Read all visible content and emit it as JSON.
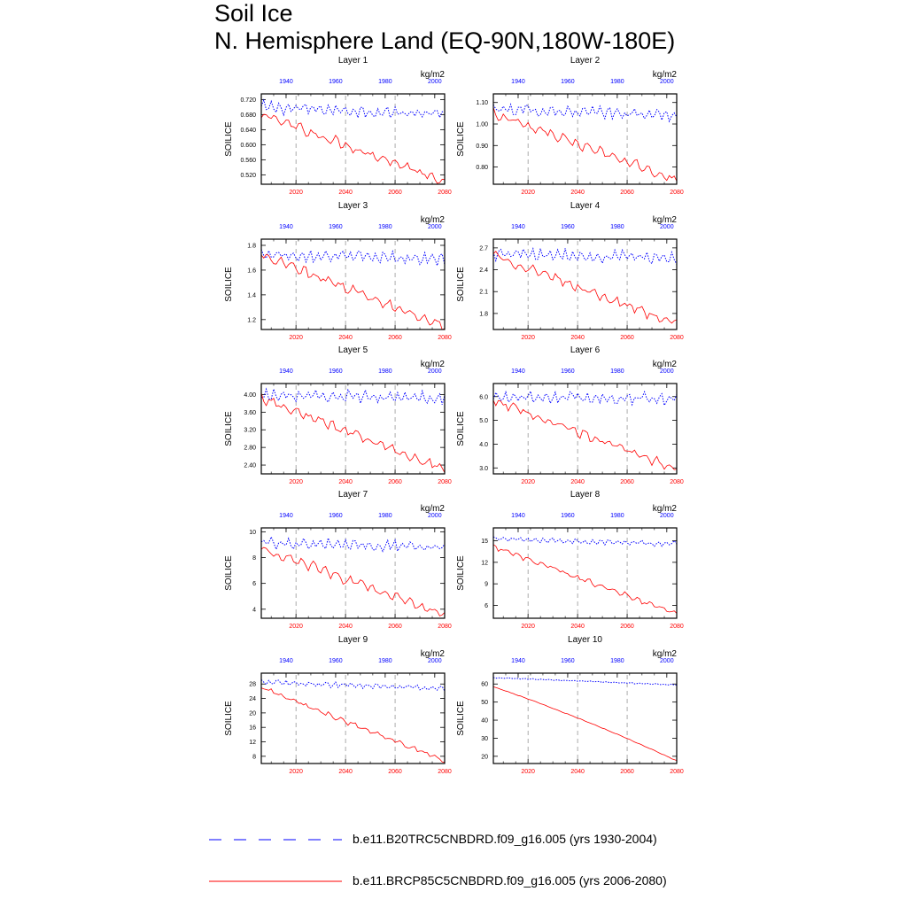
{
  "title_line1": "Soil Ice",
  "title_line2": "N. Hemisphere Land (EQ-90N,180W-180E)",
  "colors": {
    "hist": "#0000ff",
    "future": "#ff0000",
    "frame": "#000000",
    "refline": "#888888"
  },
  "legend": [
    {
      "label": "b.e11.B20TRC5CNBDRD.f09_g16.005 (yrs 1930-2004)",
      "color": "#0000ff",
      "style": "dashed"
    },
    {
      "label": "b.e11.BRCP85C5CNBDRD.f09_g16.005 (yrs 2006-2080)",
      "color": "#ff0000",
      "style": "solid"
    }
  ],
  "chart_data": [
    {
      "type": "line",
      "title": "Layer 1",
      "ylabel": "SOILICE",
      "units": "kg/m2",
      "ylim": [
        0.495,
        0.735
      ],
      "yticks": [
        0.52,
        0.56,
        0.6,
        0.64,
        0.68,
        0.72
      ],
      "ytick_labels": [
        "0.520",
        "0.560",
        "0.600",
        "0.640",
        "0.680",
        "0.720"
      ],
      "x_bottom_ticks": [
        2020,
        2040,
        2060,
        2080
      ],
      "x_top_ticks": [
        1940,
        1960,
        1980,
        2000
      ],
      "x_range_bottom": [
        2006,
        2080
      ],
      "x_range_top": [
        1930,
        2004
      ],
      "series": [
        {
          "name": "b.e11.B20TRC5CNBDRD.f09_g16.005 (yrs 1930-2004)",
          "start": 0.7,
          "end": 0.68,
          "trend": "flat"
        },
        {
          "name": "b.e11.BRCP85C5CNBDRD.f09_g16.005 (yrs 2006-2080)",
          "start": 0.68,
          "end": 0.505,
          "trend": "decline"
        }
      ]
    },
    {
      "type": "line",
      "title": "Layer 2",
      "ylabel": "SOILICE",
      "units": "kg/m2",
      "ylim": [
        0.72,
        1.14
      ],
      "yticks": [
        0.8,
        0.9,
        1.0,
        1.1
      ],
      "ytick_labels": [
        "0.80",
        "0.90",
        "1.00",
        "1.10"
      ],
      "x_bottom_ticks": [
        2020,
        2040,
        2060,
        2080
      ],
      "x_top_ticks": [
        1940,
        1960,
        1980,
        2000
      ],
      "x_range_bottom": [
        2006,
        2080
      ],
      "x_range_top": [
        1930,
        2004
      ],
      "series": [
        {
          "name": "b.e11.B20TRC5CNBDRD.f09_g16.005 (yrs 1930-2004)",
          "start": 1.07,
          "end": 1.04,
          "trend": "flat"
        },
        {
          "name": "b.e11.BRCP85C5CNBDRD.f09_g16.005 (yrs 2006-2080)",
          "start": 1.05,
          "end": 0.74,
          "trend": "decline"
        }
      ]
    },
    {
      "type": "line",
      "title": "Layer 3",
      "ylabel": "SOILICE",
      "units": "kg/m2",
      "ylim": [
        1.12,
        1.85
      ],
      "yticks": [
        1.2,
        1.4,
        1.6,
        1.8
      ],
      "ytick_labels": [
        "1.2",
        "1.4",
        "1.6",
        "1.8"
      ],
      "x_bottom_ticks": [
        2020,
        2040,
        2060,
        2080
      ],
      "x_top_ticks": [
        1940,
        1960,
        1980,
        2000
      ],
      "x_range_bottom": [
        2006,
        2080
      ],
      "x_range_top": [
        1930,
        2004
      ],
      "series": [
        {
          "name": "b.e11.B20TRC5CNBDRD.f09_g16.005 (yrs 1930-2004)",
          "start": 1.73,
          "end": 1.69,
          "trend": "flat"
        },
        {
          "name": "b.e11.BRCP85C5CNBDRD.f09_g16.005 (yrs 2006-2080)",
          "start": 1.72,
          "end": 1.15,
          "trend": "decline"
        }
      ]
    },
    {
      "type": "line",
      "title": "Layer 4",
      "ylabel": "SOILICE",
      "units": "kg/m2",
      "ylim": [
        1.58,
        2.82
      ],
      "yticks": [
        1.8,
        2.1,
        2.4,
        2.7
      ],
      "ytick_labels": [
        "1.8",
        "2.1",
        "2.4",
        "2.7"
      ],
      "x_bottom_ticks": [
        2020,
        2040,
        2060,
        2080
      ],
      "x_top_ticks": [
        1940,
        1960,
        1980,
        2000
      ],
      "x_range_bottom": [
        2006,
        2080
      ],
      "x_range_top": [
        1930,
        2004
      ],
      "series": [
        {
          "name": "b.e11.B20TRC5CNBDRD.f09_g16.005 (yrs 1930-2004)",
          "start": 2.62,
          "end": 2.56,
          "trend": "flat"
        },
        {
          "name": "b.e11.BRCP85C5CNBDRD.f09_g16.005 (yrs 2006-2080)",
          "start": 2.6,
          "end": 1.65,
          "trend": "decline"
        }
      ]
    },
    {
      "type": "line",
      "title": "Layer 5",
      "ylabel": "SOILICE",
      "units": "kg/m2",
      "ylim": [
        2.2,
        4.25
      ],
      "yticks": [
        2.4,
        2.8,
        3.2,
        3.6,
        4.0
      ],
      "ytick_labels": [
        "2.40",
        "2.80",
        "3.20",
        "3.60",
        "4.00"
      ],
      "x_bottom_ticks": [
        2020,
        2040,
        2060,
        2080
      ],
      "x_top_ticks": [
        1940,
        1960,
        1980,
        2000
      ],
      "x_range_bottom": [
        2006,
        2080
      ],
      "x_range_top": [
        1930,
        2004
      ],
      "series": [
        {
          "name": "b.e11.B20TRC5CNBDRD.f09_g16.005 (yrs 1930-2004)",
          "start": 3.98,
          "end": 3.92,
          "trend": "flat"
        },
        {
          "name": "b.e11.BRCP85C5CNBDRD.f09_g16.005 (yrs 2006-2080)",
          "start": 3.92,
          "end": 2.3,
          "trend": "decline"
        }
      ]
    },
    {
      "type": "line",
      "title": "Layer 6",
      "ylabel": "SOILICE",
      "units": "kg/m2",
      "ylim": [
        2.75,
        6.55
      ],
      "yticks": [
        3.0,
        4.0,
        5.0,
        6.0
      ],
      "ytick_labels": [
        "3.0",
        "4.0",
        "5.0",
        "6.0"
      ],
      "x_bottom_ticks": [
        2020,
        2040,
        2060,
        2080
      ],
      "x_top_ticks": [
        1940,
        1960,
        1980,
        2000
      ],
      "x_range_bottom": [
        2006,
        2080
      ],
      "x_range_top": [
        1930,
        2004
      ],
      "series": [
        {
          "name": "b.e11.B20TRC5CNBDRD.f09_g16.005 (yrs 1930-2004)",
          "start": 6.0,
          "end": 5.9,
          "trend": "flat"
        },
        {
          "name": "b.e11.BRCP85C5CNBDRD.f09_g16.005 (yrs 2006-2080)",
          "start": 5.85,
          "end": 2.95,
          "trend": "decline"
        }
      ]
    },
    {
      "type": "line",
      "title": "Layer 7",
      "ylabel": "SOILICE",
      "units": "kg/m2",
      "ylim": [
        3.3,
        10.3
      ],
      "yticks": [
        4,
        6,
        8,
        10
      ],
      "ytick_labels": [
        "4",
        "6",
        "8",
        "10"
      ],
      "x_bottom_ticks": [
        2020,
        2040,
        2060,
        2080
      ],
      "x_top_ticks": [
        1940,
        1960,
        1980,
        2000
      ],
      "x_range_bottom": [
        2006,
        2080
      ],
      "x_range_top": [
        1930,
        2004
      ],
      "series": [
        {
          "name": "b.e11.B20TRC5CNBDRD.f09_g16.005 (yrs 1930-2004)",
          "start": 9.2,
          "end": 8.8,
          "trend": "flat"
        },
        {
          "name": "b.e11.BRCP85C5CNBDRD.f09_g16.005 (yrs 2006-2080)",
          "start": 8.7,
          "end": 3.6,
          "trend": "decline"
        }
      ]
    },
    {
      "type": "line",
      "title": "Layer 8",
      "ylabel": "SOILICE",
      "units": "kg/m2",
      "ylim": [
        4.2,
        16.8
      ],
      "yticks": [
        6,
        9,
        12,
        15
      ],
      "ytick_labels": [
        "6",
        "9",
        "12",
        "15"
      ],
      "x_bottom_ticks": [
        2020,
        2040,
        2060,
        2080
      ],
      "x_top_ticks": [
        1940,
        1960,
        1980,
        2000
      ],
      "x_range_bottom": [
        2006,
        2080
      ],
      "x_range_top": [
        1930,
        2004
      ],
      "series": [
        {
          "name": "b.e11.B20TRC5CNBDRD.f09_g16.005 (yrs 1930-2004)",
          "start": 15.3,
          "end": 14.6,
          "trend": "flat"
        },
        {
          "name": "b.e11.BRCP85C5CNBDRD.f09_g16.005 (yrs 2006-2080)",
          "start": 14.2,
          "end": 4.8,
          "trend": "decline"
        }
      ]
    },
    {
      "type": "line",
      "title": "Layer 9",
      "ylabel": "SOILICE",
      "units": "kg/m2",
      "ylim": [
        6,
        31
      ],
      "yticks": [
        8,
        12,
        16,
        20,
        24,
        28
      ],
      "ytick_labels": [
        "8",
        "12",
        "16",
        "20",
        "24",
        "28"
      ],
      "x_bottom_ticks": [
        2020,
        2040,
        2060,
        2080
      ],
      "x_top_ticks": [
        1940,
        1960,
        1980,
        2000
      ],
      "x_range_bottom": [
        2006,
        2080
      ],
      "x_range_top": [
        1930,
        2004
      ],
      "series": [
        {
          "name": "b.e11.B20TRC5CNBDRD.f09_g16.005 (yrs 1930-2004)",
          "start": 28.5,
          "end": 26.8,
          "trend": "flat"
        },
        {
          "name": "b.e11.BRCP85C5CNBDRD.f09_g16.005 (yrs 2006-2080)",
          "start": 27.0,
          "end": 6.8,
          "trend": "decline"
        }
      ]
    },
    {
      "type": "line",
      "title": "Layer 10",
      "ylabel": "SOILICE",
      "units": "kg/m2",
      "ylim": [
        16,
        66
      ],
      "yticks": [
        20,
        30,
        40,
        50,
        60
      ],
      "ytick_labels": [
        "20",
        "30",
        "40",
        "50",
        "60"
      ],
      "x_bottom_ticks": [
        2020,
        2040,
        2060,
        2080
      ],
      "x_top_ticks": [
        1940,
        1960,
        1980,
        2000
      ],
      "x_range_bottom": [
        2006,
        2080
      ],
      "x_range_top": [
        1930,
        2004
      ],
      "series": [
        {
          "name": "b.e11.B20TRC5CNBDRD.f09_g16.005 (yrs 1930-2004)",
          "start": 63.5,
          "end": 59.5,
          "trend": "flat"
        },
        {
          "name": "b.e11.BRCP85C5CNBDRD.f09_g16.005 (yrs 2006-2080)",
          "start": 58.5,
          "end": 17.5,
          "trend": "smooth-decline"
        }
      ]
    }
  ]
}
